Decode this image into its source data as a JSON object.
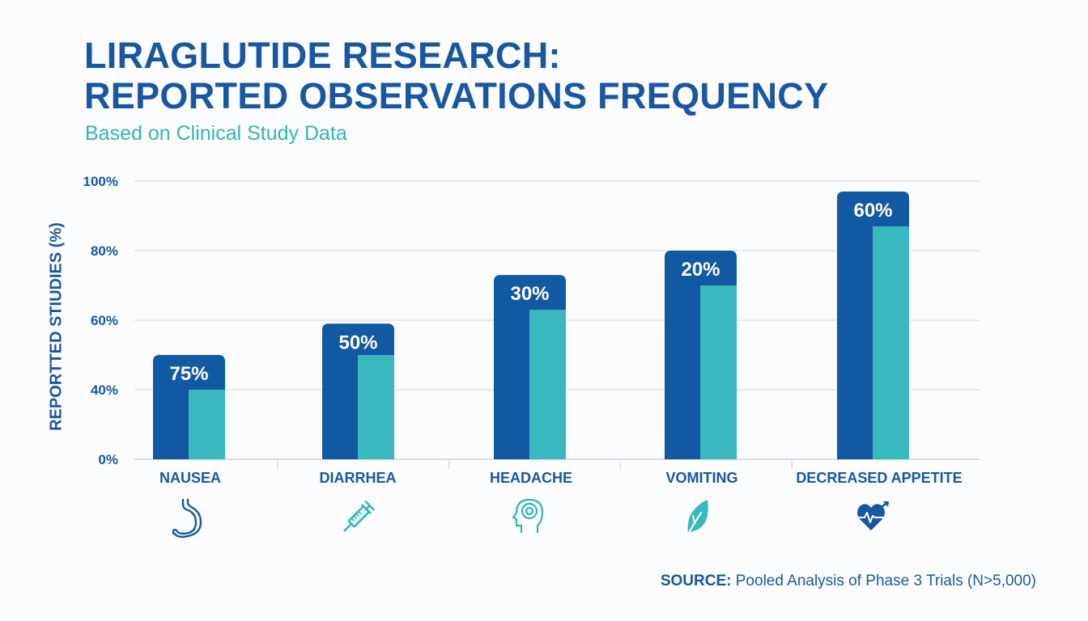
{
  "colors": {
    "primary": "#1259a3",
    "accent": "#3ab8c0",
    "text_blue": "#1a57a2",
    "grid": "#e2e5e8"
  },
  "chart_data": {
    "type": "bar",
    "title": "LIRAGLUTIDE RESEARCH: REPORTED OBSERVATIONS FREQUENCY",
    "title_lines": [
      "LIRAGLUTIDE RESEARCH:",
      "REPORTED OBSERVATIONS FREQUENCY"
    ],
    "subtitle": "Based on Clinical Study Data",
    "xlabel": "",
    "ylabel": "REPORTTED STIUDIES (%)",
    "y_ticks": [
      0,
      40,
      60,
      80,
      100
    ],
    "y_tick_labels": [
      "0%",
      "40%",
      "60%",
      "80%",
      "100%"
    ],
    "y_scale_note": "ticks evenly spaced (non-linear)",
    "ylim": [
      0,
      100
    ],
    "grid": true,
    "categories": [
      "NAUSEA",
      "DIARRHEA",
      "HEADACHE",
      "VOMITING",
      "DECREASED APPETITE"
    ],
    "series": [
      {
        "name": "outer",
        "color": "#1259a3",
        "values": [
          50,
          59,
          73,
          80,
          97
        ]
      },
      {
        "name": "inner",
        "color": "#3ab8c0",
        "values": [
          40,
          50,
          63,
          70,
          87
        ]
      }
    ],
    "data_labels": [
      "75%",
      "50%",
      "30%",
      "20%",
      "60%"
    ],
    "icons": [
      {
        "name": "stomach-icon",
        "color": "#1a57a2"
      },
      {
        "name": "syringe-icon",
        "color": "#2fb3be"
      },
      {
        "name": "head-icon",
        "color": "#2fb3be"
      },
      {
        "name": "leaf-icon",
        "color": "#3ab8c0"
      },
      {
        "name": "heart-pulse-icon",
        "color": "#1a57a2"
      }
    ]
  },
  "source": {
    "label": "SOURCE:",
    "text": " Pooled Analysis of Phase 3 Trials (N>5,000)"
  }
}
